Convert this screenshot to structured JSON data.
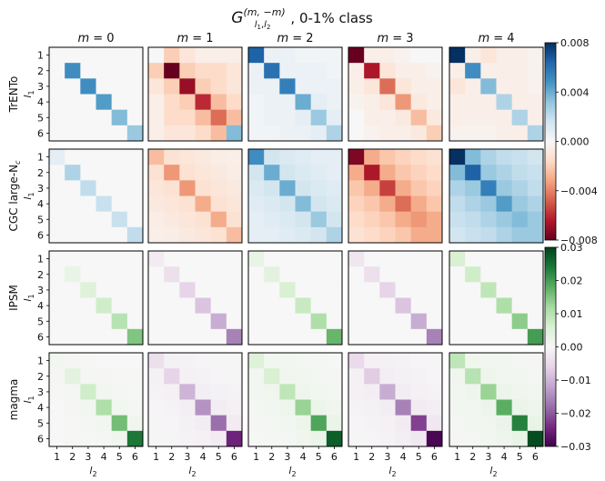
{
  "chart_data": {
    "type": "heatmap",
    "title": {
      "base": "G",
      "sup": "(m, −m)",
      "sub": "l",
      "sub1": "1",
      "sep": ",",
      "sub2": "2",
      "suffix": ", 0-1% class"
    },
    "column_titles": [
      "m = 0",
      "m = 1",
      "m = 2",
      "m = 3",
      "m = 4"
    ],
    "row_labels": [
      "TrENTo",
      "CGC large-N",
      "IPSM",
      "magma"
    ],
    "row_label_subscript": [
      "",
      "c",
      "",
      ""
    ],
    "xlabel": {
      "base": "l",
      "sub": "2"
    },
    "ylabel": {
      "base": "l",
      "sub": "1"
    },
    "ticks": [
      "1",
      "2",
      "3",
      "4",
      "5",
      "6"
    ],
    "colorbars": [
      {
        "rows": [
          0,
          1
        ],
        "cmap": "RdBu",
        "range": [
          -0.008,
          0.008
        ],
        "ticks": [
          0.008,
          0.004,
          0.0,
          -0.004,
          -0.008
        ],
        "tick_labels": [
          "0.008",
          "0.004",
          "0.000",
          "−0.004",
          "−0.008"
        ]
      },
      {
        "rows": [
          2,
          3
        ],
        "cmap": "PRGn",
        "range": [
          -0.03,
          0.03
        ],
        "ticks": [
          0.03,
          0.02,
          0.01,
          0.0,
          -0.01,
          -0.02,
          -0.03
        ],
        "tick_labels": [
          "0.03",
          "0.02",
          "0.01",
          "0.00",
          "−0.01",
          "−0.02",
          "−0.03"
        ]
      }
    ],
    "matrices": [
      [
        [
          [
            0,
            0,
            0,
            0,
            0,
            0
          ],
          [
            0,
            0.005,
            0,
            0,
            0,
            0
          ],
          [
            0,
            0,
            0.005,
            0,
            0,
            0
          ],
          [
            0,
            0,
            0,
            0.0045,
            0,
            0
          ],
          [
            0,
            0,
            0,
            0,
            0.0035,
            0
          ],
          [
            0,
            0,
            0,
            0,
            0,
            0.003
          ]
        ],
        [
          [
            0,
            -0.002,
            -0.001,
            -0.0005,
            -0.0005,
            -0.0005
          ],
          [
            -0.002,
            -0.0085,
            -0.002,
            -0.0015,
            -0.0015,
            -0.001
          ],
          [
            -0.001,
            -0.002,
            -0.007,
            -0.002,
            -0.0015,
            -0.001
          ],
          [
            -0.0005,
            -0.0015,
            -0.002,
            -0.006,
            -0.0025,
            -0.0015
          ],
          [
            -0.0005,
            -0.0015,
            -0.0015,
            -0.0025,
            -0.0045,
            -0.0025
          ],
          [
            -0.0005,
            -0.001,
            -0.001,
            -0.0015,
            -0.0025,
            0.0035
          ]
        ],
        [
          [
            0.0065,
            0.0005,
            0.0005,
            0.0003,
            0.0003,
            0.0003
          ],
          [
            0.0005,
            0.006,
            0.0005,
            0.0005,
            0.0005,
            0.0003
          ],
          [
            0.0005,
            0.0005,
            0.0055,
            0.0005,
            0.0005,
            0.0005
          ],
          [
            0.0003,
            0.0005,
            0.0005,
            0.004,
            0.0008,
            0.0005
          ],
          [
            0.0003,
            0.0005,
            0.0005,
            0.0008,
            0.003,
            0.0008
          ],
          [
            0.0003,
            0.0003,
            0.0005,
            0.0005,
            0.0008,
            0.0025
          ]
        ],
        [
          [
            -0.0085,
            -0.0005,
            -0.0005,
            -0.0003,
            0,
            0
          ],
          [
            -0.0005,
            -0.0065,
            -0.001,
            -0.0005,
            -0.0005,
            -0.0003
          ],
          [
            -0.0005,
            -0.001,
            -0.0045,
            -0.001,
            -0.0005,
            -0.0005
          ],
          [
            -0.0003,
            -0.0005,
            -0.001,
            -0.0035,
            -0.0008,
            -0.0005
          ],
          [
            0,
            -0.0005,
            -0.0005,
            -0.0008,
            -0.0025,
            -0.0008
          ],
          [
            0,
            -0.0003,
            -0.0005,
            -0.0005,
            -0.0008,
            -0.002
          ]
        ],
        [
          [
            0.0085,
            -0.0005,
            -0.001,
            -0.0005,
            -0.0005,
            -0.0003
          ],
          [
            -0.0005,
            0.005,
            -0.0005,
            -0.0005,
            -0.0005,
            -0.0003
          ],
          [
            -0.001,
            -0.0005,
            0.0035,
            -0.0005,
            -0.0005,
            -0.0003
          ],
          [
            -0.0005,
            -0.0005,
            -0.0005,
            0.0025,
            -0.0005,
            -0.0005
          ],
          [
            -0.0005,
            -0.0005,
            -0.0005,
            -0.0005,
            0.0025,
            -0.0005
          ],
          [
            -0.0003,
            -0.0003,
            -0.0003,
            -0.0005,
            -0.0005,
            0.0025
          ]
        ]
      ],
      [
        [
          [
            0.0008,
            0,
            0,
            0,
            0,
            0
          ],
          [
            0,
            0.0025,
            0,
            0,
            0,
            0
          ],
          [
            0,
            0,
            0.002,
            0,
            0,
            0
          ],
          [
            0,
            0,
            0,
            0.0018,
            0,
            0
          ],
          [
            0,
            0,
            0,
            0,
            0.0018,
            0
          ],
          [
            0,
            0,
            0,
            0,
            0,
            0.002
          ]
        ],
        [
          [
            -0.0025,
            -0.0012,
            -0.001,
            -0.0008,
            -0.0006,
            -0.0005
          ],
          [
            -0.0012,
            -0.0035,
            -0.0012,
            -0.001,
            -0.0008,
            -0.0006
          ],
          [
            -0.001,
            -0.0012,
            -0.0035,
            -0.0012,
            -0.001,
            -0.0008
          ],
          [
            -0.0008,
            -0.001,
            -0.0012,
            -0.003,
            -0.0012,
            -0.001
          ],
          [
            -0.0006,
            -0.0008,
            -0.001,
            -0.0012,
            -0.003,
            -0.0012
          ],
          [
            -0.0005,
            -0.0006,
            -0.0008,
            -0.001,
            -0.0012,
            -0.0025
          ]
        ],
        [
          [
            0.005,
            0.0015,
            0.0012,
            0.001,
            0.0008,
            0.0008
          ],
          [
            0.0015,
            0.004,
            0.0015,
            0.0012,
            0.001,
            0.0008
          ],
          [
            0.0012,
            0.0015,
            0.004,
            0.0015,
            0.0012,
            0.001
          ],
          [
            0.001,
            0.0012,
            0.0015,
            0.0035,
            0.0015,
            0.0012
          ],
          [
            0.0008,
            0.001,
            0.0012,
            0.0015,
            0.003,
            0.0015
          ],
          [
            0.0008,
            0.0008,
            0.001,
            0.0012,
            0.0015,
            0.0025
          ]
        ],
        [
          [
            -0.0075,
            -0.003,
            -0.0022,
            -0.0018,
            -0.0015,
            -0.0012
          ],
          [
            -0.003,
            -0.0065,
            -0.003,
            -0.0022,
            -0.0018,
            -0.0015
          ],
          [
            -0.0022,
            -0.003,
            -0.0055,
            -0.003,
            -0.0022,
            -0.0018
          ],
          [
            -0.0018,
            -0.0022,
            -0.003,
            -0.0045,
            -0.003,
            -0.0022
          ],
          [
            -0.0015,
            -0.0018,
            -0.0022,
            -0.003,
            -0.0035,
            -0.003
          ],
          [
            -0.0012,
            -0.0015,
            -0.0018,
            -0.0022,
            -0.003,
            -0.003
          ]
        ],
        [
          [
            0.0085,
            0.0035,
            0.0025,
            0.002,
            0.0018,
            0.0015
          ],
          [
            0.0035,
            0.0065,
            0.003,
            0.0025,
            0.002,
            0.0018
          ],
          [
            0.0025,
            0.003,
            0.0055,
            0.003,
            0.0025,
            0.002
          ],
          [
            0.002,
            0.0025,
            0.003,
            0.0045,
            0.003,
            0.0025
          ],
          [
            0.0018,
            0.002,
            0.0025,
            0.003,
            0.0035,
            0.003
          ],
          [
            0.0015,
            0.0018,
            0.002,
            0.0025,
            0.003,
            0.003
          ]
        ]
      ],
      [
        [
          [
            0,
            0,
            0,
            0,
            0,
            0
          ],
          [
            0,
            0.003,
            0,
            0,
            0,
            0
          ],
          [
            0,
            0,
            0.005,
            0,
            0,
            0
          ],
          [
            0,
            0,
            0,
            0.007,
            0,
            0
          ],
          [
            0,
            0,
            0,
            0,
            0.01,
            0
          ],
          [
            0,
            0,
            0,
            0,
            0,
            0.015
          ]
        ],
        [
          [
            -0.002,
            0,
            0,
            0,
            0,
            0
          ],
          [
            0,
            -0.004,
            0,
            0,
            0,
            0
          ],
          [
            0,
            0,
            -0.006,
            0,
            0,
            0
          ],
          [
            0,
            0,
            0,
            -0.008,
            0,
            0
          ],
          [
            0,
            0,
            0,
            0,
            -0.011,
            0
          ],
          [
            0,
            0,
            0,
            0,
            0,
            -0.016
          ]
        ],
        [
          [
            0.003,
            0,
            0,
            0,
            0,
            0
          ],
          [
            0,
            0.004,
            0,
            0,
            0,
            0
          ],
          [
            0,
            0,
            0.006,
            0,
            0,
            0
          ],
          [
            0,
            0,
            0,
            0.008,
            0,
            0
          ],
          [
            0,
            0,
            0,
            0,
            0.011,
            0
          ],
          [
            0,
            0,
            0,
            0,
            0,
            0.017
          ]
        ],
        [
          [
            -0.003,
            0,
            0,
            0,
            0,
            0
          ],
          [
            0,
            -0.004,
            0,
            0,
            0,
            0
          ],
          [
            0,
            0,
            -0.006,
            0,
            0,
            0
          ],
          [
            0,
            0,
            0,
            -0.008,
            0,
            0
          ],
          [
            0,
            0,
            0,
            0,
            -0.011,
            0
          ],
          [
            0,
            0,
            0,
            0,
            0,
            -0.016
          ]
        ],
        [
          [
            0.006,
            0,
            0,
            0,
            0,
            0
          ],
          [
            0,
            0.007,
            0,
            0,
            0,
            0
          ],
          [
            0,
            0,
            0.009,
            0,
            0,
            0
          ],
          [
            0,
            0,
            0,
            0.011,
            0,
            0
          ],
          [
            0,
            0,
            0,
            0,
            0.014,
            0
          ],
          [
            0,
            0,
            0,
            0,
            0,
            0.02
          ]
        ]
      ],
      [
        [
          [
            0.001,
            0.0005,
            0.0003,
            0.0002,
            0.0002,
            0.0002
          ],
          [
            0.0005,
            0.004,
            0.0008,
            0.0005,
            0.0003,
            0.0003
          ],
          [
            0.0003,
            0.0008,
            0.007,
            0.001,
            0.0006,
            0.0004
          ],
          [
            0.0002,
            0.0005,
            0.001,
            0.011,
            0.0012,
            0.0008
          ],
          [
            0.0002,
            0.0003,
            0.0006,
            0.0012,
            0.016,
            0.0015
          ],
          [
            0.0002,
            0.0003,
            0.0004,
            0.0008,
            0.0015,
            0.024
          ]
        ],
        [
          [
            -0.004,
            -0.001,
            -0.0008,
            -0.0005,
            -0.0004,
            -0.0003
          ],
          [
            -0.001,
            -0.006,
            -0.0012,
            -0.0008,
            -0.0005,
            -0.0004
          ],
          [
            -0.0008,
            -0.0012,
            -0.01,
            -0.0015,
            -0.001,
            -0.0008
          ],
          [
            -0.0005,
            -0.0008,
            -0.0015,
            -0.014,
            -0.0018,
            -0.0012
          ],
          [
            -0.0004,
            -0.0005,
            -0.001,
            -0.0018,
            -0.018,
            -0.002
          ],
          [
            -0.0003,
            -0.0004,
            -0.0008,
            -0.0012,
            -0.002,
            -0.025
          ]
        ],
        [
          [
            0.005,
            0.0012,
            0.001,
            0.0008,
            0.0005,
            0.0004
          ],
          [
            0.0012,
            0.006,
            0.0015,
            0.001,
            0.0008,
            0.0005
          ],
          [
            0.001,
            0.0015,
            0.009,
            0.0018,
            0.0012,
            0.0008
          ],
          [
            0.0008,
            0.001,
            0.0018,
            0.013,
            0.002,
            0.0015
          ],
          [
            0.0005,
            0.0008,
            0.0012,
            0.002,
            0.019,
            0.0025
          ],
          [
            0.0004,
            0.0005,
            0.0008,
            0.0015,
            0.0025,
            0.027
          ]
        ],
        [
          [
            -0.005,
            -0.0012,
            -0.001,
            -0.0008,
            -0.0005,
            -0.0004
          ],
          [
            -0.0012,
            -0.007,
            -0.0015,
            -0.001,
            -0.0008,
            -0.0005
          ],
          [
            -0.001,
            -0.0015,
            -0.011,
            -0.0018,
            -0.0012,
            -0.0008
          ],
          [
            -0.0008,
            -0.001,
            -0.0018,
            -0.016,
            -0.002,
            -0.0015
          ],
          [
            -0.0005,
            -0.0008,
            -0.0012,
            -0.002,
            -0.022,
            -0.0025
          ],
          [
            -0.0004,
            -0.0005,
            -0.0008,
            -0.0015,
            -0.0025,
            -0.029
          ]
        ],
        [
          [
            0.009,
            0.0015,
            0.0012,
            0.001,
            0.0008,
            0.0005
          ],
          [
            0.0015,
            0.01,
            0.0018,
            0.0012,
            0.001,
            0.0008
          ],
          [
            0.0012,
            0.0018,
            0.013,
            0.002,
            0.0015,
            0.001
          ],
          [
            0.001,
            0.0012,
            0.002,
            0.018,
            0.0025,
            0.0018
          ],
          [
            0.0008,
            0.001,
            0.0015,
            0.0025,
            0.023,
            0.003
          ],
          [
            0.0005,
            0.0008,
            0.001,
            0.0018,
            0.003,
            0.029
          ]
        ]
      ]
    ]
  }
}
